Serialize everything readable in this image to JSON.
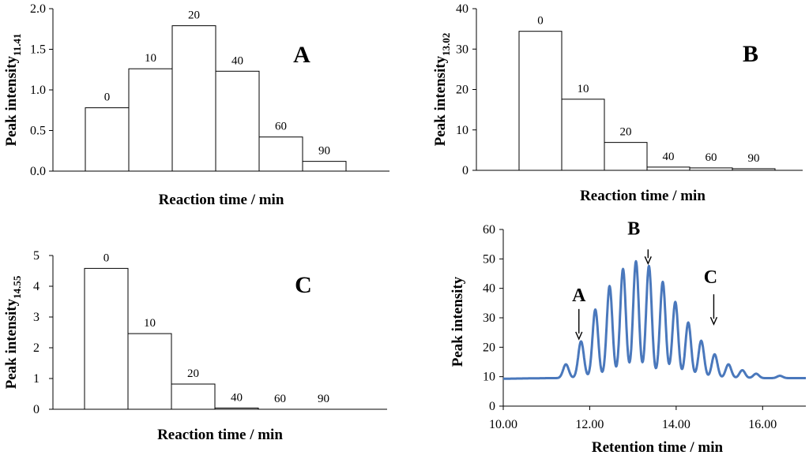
{
  "chart_data": [
    {
      "type": "bar",
      "panel_label": "A",
      "categories": [
        "0",
        "10",
        "20",
        "40",
        "60",
        "90"
      ],
      "values": [
        0.78,
        1.26,
        1.79,
        1.23,
        0.42,
        0.12
      ],
      "xlabel": "Reaction time / min",
      "ylabel_main": "Peak intensity",
      "ylabel_sub": "11.41",
      "ylim": [
        0,
        2.0
      ],
      "yticks": [
        "0.0",
        "0.5",
        "1.0",
        "1.5",
        "2.0"
      ],
      "ytick_values": [
        0,
        0.5,
        1.0,
        1.5,
        2.0
      ]
    },
    {
      "type": "bar",
      "panel_label": "B",
      "categories": [
        "0",
        "10",
        "20",
        "40",
        "60",
        "90"
      ],
      "values": [
        34.4,
        17.6,
        6.9,
        0.8,
        0.6,
        0.4
      ],
      "xlabel": "Reaction time / min",
      "ylabel_main": "Peak intensity",
      "ylabel_sub": "13.02",
      "ylim": [
        0,
        40
      ],
      "yticks": [
        "0",
        "10",
        "20",
        "30",
        "40"
      ],
      "ytick_values": [
        0,
        10,
        20,
        30,
        40
      ]
    },
    {
      "type": "bar",
      "panel_label": "C",
      "categories": [
        "0",
        "10",
        "20",
        "40",
        "60",
        "90"
      ],
      "values": [
        4.58,
        2.46,
        0.82,
        0.04,
        0.0,
        0.0
      ],
      "xlabel": "Reaction time / min",
      "ylabel_main": "Peak intensity",
      "ylabel_sub": "14.55",
      "ylim": [
        0,
        5
      ],
      "yticks": [
        "0",
        "1",
        "2",
        "3",
        "4",
        "5"
      ],
      "ytick_values": [
        0,
        1,
        2,
        3,
        4,
        5
      ]
    },
    {
      "type": "line",
      "xlabel": "Retention time / min",
      "ylabel": "Peak intensity",
      "xlim": [
        10.0,
        17.0
      ],
      "ylim": [
        0,
        60
      ],
      "xticks": [
        "10.00",
        "12.00",
        "14.00",
        "16.00"
      ],
      "xtick_values": [
        10,
        12,
        14,
        16
      ],
      "yticks": [
        "0",
        "10",
        "20",
        "30",
        "40",
        "50",
        "60"
      ],
      "ytick_values": [
        0,
        10,
        20,
        30,
        40,
        50,
        60
      ],
      "color": "#4a78bc",
      "baseline": 9.5,
      "peaks": [
        {
          "x": 11.45,
          "y": 14.2
        },
        {
          "x": 11.8,
          "y": 22.0
        },
        {
          "x": 12.13,
          "y": 32.8
        },
        {
          "x": 12.46,
          "y": 40.8
        },
        {
          "x": 12.77,
          "y": 46.6
        },
        {
          "x": 13.07,
          "y": 49.2
        },
        {
          "x": 13.37,
          "y": 47.6
        },
        {
          "x": 13.69,
          "y": 42.2
        },
        {
          "x": 13.98,
          "y": 35.4
        },
        {
          "x": 14.28,
          "y": 28.4
        },
        {
          "x": 14.58,
          "y": 22.2
        },
        {
          "x": 14.89,
          "y": 17.6
        },
        {
          "x": 15.21,
          "y": 14.2
        },
        {
          "x": 15.53,
          "y": 12.2
        },
        {
          "x": 15.85,
          "y": 11.0
        },
        {
          "x": 16.4,
          "y": 10.3
        }
      ],
      "annotations": [
        {
          "text": "A",
          "x": 11.75,
          "y": 22.0
        },
        {
          "text": "B",
          "x": 13.35,
          "y": 47.6
        },
        {
          "text": "C",
          "x": 14.87,
          "y": 27.0
        }
      ]
    }
  ]
}
